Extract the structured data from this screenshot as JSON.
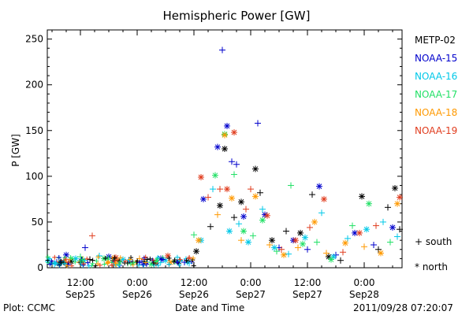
{
  "chart_data": {
    "type": "scatter",
    "title": "Hemispheric Power [GW]",
    "xlabel": "Date and Time",
    "ylabel": "P [GW]",
    "ylim": [
      0,
      260
    ],
    "yticks": [
      0,
      50,
      100,
      150,
      200,
      250
    ],
    "xlim": [
      "2011-09-25 05:00",
      "2011-09-28 08:00"
    ],
    "xticks": [
      {
        "time": "12:00",
        "date": "Sep25"
      },
      {
        "time": "0:00",
        "date": "Sep26"
      },
      {
        "time": "12:00",
        "date": "Sep26"
      },
      {
        "time": "0:00",
        "date": "Sep27"
      },
      {
        "time": "12:00",
        "date": "Sep27"
      },
      {
        "time": "0:00",
        "date": "Sep28"
      }
    ],
    "markers": {
      "south": "+",
      "north": "*"
    },
    "legend_extra": [
      "+ south",
      "* north"
    ],
    "footer_left": "Plot: CCMC",
    "footer_right": "2011/09/28 07:20:07",
    "series": [
      {
        "name": "METP-02",
        "color": "#000000",
        "points": [
          [
            "2011-09-25 06:00",
            5,
            "+"
          ],
          [
            "2011-09-25 10:00",
            7,
            "*"
          ],
          [
            "2011-09-25 14:00",
            9,
            "+"
          ],
          [
            "2011-09-25 19:00",
            8,
            "*"
          ],
          [
            "2011-09-25 23:00",
            6,
            "+"
          ],
          [
            "2011-09-26 04:00",
            5,
            "*"
          ],
          [
            "2011-09-26 09:00",
            8,
            "+"
          ],
          [
            "2011-09-26 12:30",
            18,
            "*"
          ],
          [
            "2011-09-26 15:30",
            45,
            "+"
          ],
          [
            "2011-09-26 17:30",
            68,
            "*"
          ],
          [
            "2011-09-26 18:30",
            130,
            "*"
          ],
          [
            "2011-09-26 20:30",
            55,
            "+"
          ],
          [
            "2011-09-26 22:00",
            72,
            "*"
          ],
          [
            "2011-09-27 01:00",
            108,
            "*"
          ],
          [
            "2011-09-27 02:00",
            82,
            "+"
          ],
          [
            "2011-09-27 04:30",
            30,
            "*"
          ],
          [
            "2011-09-27 07:30",
            40,
            "+"
          ],
          [
            "2011-09-27 10:30",
            38,
            "*"
          ],
          [
            "2011-09-27 13:00",
            80,
            "+"
          ],
          [
            "2011-09-27 16:30",
            12,
            "*"
          ],
          [
            "2011-09-27 19:00",
            8,
            "+"
          ],
          [
            "2011-09-27 23:30",
            78,
            "*"
          ],
          [
            "2011-09-28 03:00",
            20,
            "+"
          ],
          [
            "2011-09-28 05:00",
            66,
            "+"
          ],
          [
            "2011-09-28 06:30",
            87,
            "*"
          ],
          [
            "2011-09-28 07:30",
            42,
            "+"
          ]
        ]
      },
      {
        "name": "NOAA-15",
        "color": "#0000cc",
        "points": [
          [
            "2011-09-25 07:00",
            6,
            "+"
          ],
          [
            "2011-09-25 09:00",
            14,
            "*"
          ],
          [
            "2011-09-25 13:00",
            22,
            "+"
          ],
          [
            "2011-09-25 18:00",
            12,
            "*"
          ],
          [
            "2011-09-26 01:00",
            7,
            "+"
          ],
          [
            "2011-09-26 05:00",
            10,
            "*"
          ],
          [
            "2011-09-26 10:00",
            6,
            "+"
          ],
          [
            "2011-09-26 14:00",
            75,
            "*"
          ],
          [
            "2011-09-26 17:00",
            132,
            "*"
          ],
          [
            "2011-09-26 18:00",
            238,
            "+"
          ],
          [
            "2011-09-26 19:00",
            155,
            "*"
          ],
          [
            "2011-09-26 20:00",
            116,
            "+"
          ],
          [
            "2011-09-26 21:00",
            113,
            "+"
          ],
          [
            "2011-09-26 22:30",
            56,
            "*"
          ],
          [
            "2011-09-27 01:30",
            158,
            "+"
          ],
          [
            "2011-09-27 03:00",
            58,
            "*"
          ],
          [
            "2011-09-27 06:00",
            22,
            "+"
          ],
          [
            "2011-09-27 09:00",
            30,
            "*"
          ],
          [
            "2011-09-27 12:00",
            20,
            "+"
          ],
          [
            "2011-09-27 14:30",
            89,
            "*"
          ],
          [
            "2011-09-27 18:00",
            14,
            "+"
          ],
          [
            "2011-09-27 22:00",
            38,
            "*"
          ],
          [
            "2011-09-28 02:00",
            25,
            "+"
          ],
          [
            "2011-09-28 06:00",
            44,
            "*"
          ]
        ]
      },
      {
        "name": "NOAA-16",
        "color": "#00c8e8",
        "points": [
          [
            "2011-09-25 06:30",
            4,
            "+"
          ],
          [
            "2011-09-25 11:00",
            10,
            "*"
          ],
          [
            "2011-09-25 16:00",
            13,
            "+"
          ],
          [
            "2011-09-25 21:00",
            9,
            "*"
          ],
          [
            "2011-09-26 02:00",
            6,
            "+"
          ],
          [
            "2011-09-26 06:00",
            8,
            "*"
          ],
          [
            "2011-09-26 11:00",
            5,
            "+"
          ],
          [
            "2011-09-26 13:30",
            30,
            "*"
          ],
          [
            "2011-09-26 16:00",
            86,
            "+"
          ],
          [
            "2011-09-26 19:30",
            40,
            "*"
          ],
          [
            "2011-09-26 21:30",
            48,
            "+"
          ],
          [
            "2011-09-26 23:30",
            28,
            "*"
          ],
          [
            "2011-09-27 02:30",
            64,
            "+"
          ],
          [
            "2011-09-27 05:00",
            22,
            "*"
          ],
          [
            "2011-09-27 08:00",
            15,
            "+"
          ],
          [
            "2011-09-27 11:30",
            33,
            "*"
          ],
          [
            "2011-09-27 15:00",
            60,
            "+"
          ],
          [
            "2011-09-27 17:30",
            12,
            "*"
          ],
          [
            "2011-09-27 20:30",
            32,
            "+"
          ],
          [
            "2011-09-28 00:30",
            42,
            "*"
          ],
          [
            "2011-09-28 04:00",
            50,
            "+"
          ],
          [
            "2011-09-28 07:00",
            34,
            "+"
          ]
        ]
      },
      {
        "name": "NOAA-17",
        "color": "#22e066",
        "points": [
          [
            "2011-09-25 08:00",
            6,
            "*"
          ],
          [
            "2011-09-25 12:00",
            12,
            "+"
          ],
          [
            "2011-09-25 17:00",
            10,
            "*"
          ],
          [
            "2011-09-25 22:00",
            5,
            "+"
          ],
          [
            "2011-09-26 03:00",
            4,
            "*"
          ],
          [
            "2011-09-26 08:00",
            7,
            "+"
          ],
          [
            "2011-09-26 12:00",
            36,
            "+"
          ],
          [
            "2011-09-26 16:30",
            101,
            "*"
          ],
          [
            "2011-09-26 18:30",
            146,
            "*"
          ],
          [
            "2011-09-26 20:30",
            102,
            "+"
          ],
          [
            "2011-09-26 22:30",
            40,
            "*"
          ],
          [
            "2011-09-27 00:30",
            35,
            "+"
          ],
          [
            "2011-09-27 02:30",
            52,
            "*"
          ],
          [
            "2011-09-27 05:30",
            18,
            "+"
          ],
          [
            "2011-09-27 08:30",
            90,
            "+"
          ],
          [
            "2011-09-27 11:00",
            26,
            "*"
          ],
          [
            "2011-09-27 14:00",
            28,
            "+"
          ],
          [
            "2011-09-27 17:00",
            9,
            "*"
          ],
          [
            "2011-09-27 21:30",
            46,
            "+"
          ],
          [
            "2011-09-28 01:00",
            70,
            "*"
          ],
          [
            "2011-09-28 05:30",
            28,
            "+"
          ]
        ]
      },
      {
        "name": "NOAA-18",
        "color": "#ff9900",
        "points": [
          [
            "2011-09-25 07:30",
            5,
            "*"
          ],
          [
            "2011-09-25 12:30",
            9,
            "+"
          ],
          [
            "2011-09-25 20:00",
            7,
            "*"
          ],
          [
            "2011-09-26 00:30",
            10,
            "+"
          ],
          [
            "2011-09-26 07:00",
            6,
            "*"
          ],
          [
            "2011-09-26 13:00",
            30,
            "*"
          ],
          [
            "2011-09-26 17:00",
            58,
            "+"
          ],
          [
            "2011-09-26 18:30",
            145,
            "*"
          ],
          [
            "2011-09-26 20:00",
            76,
            "*"
          ],
          [
            "2011-09-26 22:00",
            30,
            "+"
          ],
          [
            "2011-09-27 01:00",
            78,
            "*"
          ],
          [
            "2011-09-27 04:00",
            25,
            "+"
          ],
          [
            "2011-09-27 07:00",
            14,
            "*"
          ],
          [
            "2011-09-27 10:00",
            22,
            "+"
          ],
          [
            "2011-09-27 13:30",
            50,
            "*"
          ],
          [
            "2011-09-27 16:00",
            16,
            "+"
          ],
          [
            "2011-09-27 20:00",
            27,
            "*"
          ],
          [
            "2011-09-28 00:00",
            23,
            "+"
          ],
          [
            "2011-09-28 03:30",
            16,
            "*"
          ],
          [
            "2011-09-28 07:00",
            70,
            "*"
          ]
        ]
      },
      {
        "name": "NOAA-19",
        "color": "#e03c1e",
        "points": [
          [
            "2011-09-25 08:30",
            8,
            "+"
          ],
          [
            "2011-09-25 14:30",
            35,
            "+"
          ],
          [
            "2011-09-25 19:30",
            11,
            "*"
          ],
          [
            "2011-09-26 01:30",
            9,
            "+"
          ],
          [
            "2011-09-26 06:30",
            13,
            "*"
          ],
          [
            "2011-09-26 13:30",
            99,
            "*"
          ],
          [
            "2011-09-26 15:00",
            77,
            "+"
          ],
          [
            "2011-09-26 17:30",
            86,
            "+"
          ],
          [
            "2011-09-26 19:00",
            86,
            "*"
          ],
          [
            "2011-09-26 20:30",
            148,
            "*"
          ],
          [
            "2011-09-26 23:00",
            64,
            "+"
          ],
          [
            "2011-09-27 00:00",
            86,
            "+"
          ],
          [
            "2011-09-27 03:30",
            57,
            "*"
          ],
          [
            "2011-09-27 06:30",
            20,
            "+"
          ],
          [
            "2011-09-27 09:30",
            30,
            "*"
          ],
          [
            "2011-09-27 12:30",
            44,
            "+"
          ],
          [
            "2011-09-27 15:30",
            75,
            "*"
          ],
          [
            "2011-09-27 19:30",
            17,
            "+"
          ],
          [
            "2011-09-27 23:00",
            38,
            "*"
          ],
          [
            "2011-09-28 02:30",
            46,
            "+"
          ],
          [
            "2011-09-28 07:30",
            77,
            "*"
          ]
        ]
      }
    ]
  }
}
